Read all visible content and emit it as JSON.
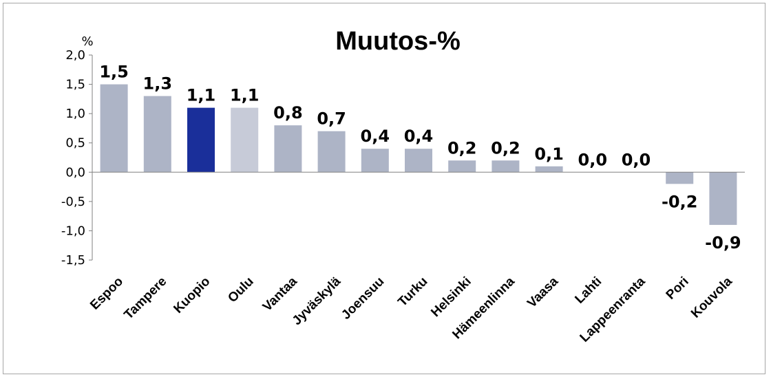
{
  "chart_data": {
    "type": "bar",
    "title": "Muutos-%",
    "ylabel": "%",
    "xlabel": "",
    "ylim": [
      -1.5,
      2.0
    ],
    "yticks": [
      2.0,
      1.5,
      1.0,
      0.5,
      0.0,
      -0.5,
      -1.0,
      -1.5
    ],
    "ytick_labels": [
      "2,0",
      "1,5",
      "1,0",
      "0,5",
      "0,0",
      "-0,5",
      "-1,0",
      "-1,5"
    ],
    "categories": [
      "Espoo",
      "Tampere",
      "Kuopio",
      "Oulu",
      "Vantaa",
      "Jyväskylä",
      "Joensuu",
      "Turku",
      "Helsinki",
      "Hämeenlinna",
      "Vaasa",
      "Lahti",
      "Lappeenranta",
      "Pori",
      "Kouvola"
    ],
    "values": [
      1.5,
      1.3,
      1.1,
      1.1,
      0.8,
      0.7,
      0.4,
      0.4,
      0.2,
      0.2,
      0.1,
      0.0,
      0.0,
      -0.2,
      -0.9
    ],
    "data_labels": [
      "1,5",
      "1,3",
      "1,1",
      "1,1",
      "0,8",
      "0,7",
      "0,4",
      "0,4",
      "0,2",
      "0,2",
      "0,1",
      "0,0",
      "0,0",
      "-0,2",
      "-0,9"
    ],
    "bar_colors": [
      "#adb4c6",
      "#adb4c6",
      "#1a2f9a",
      "#c7cbd8",
      "#adb4c6",
      "#adb4c6",
      "#adb4c6",
      "#adb4c6",
      "#adb4c6",
      "#adb4c6",
      "#adb4c6",
      "#adb4c6",
      "#adb4c6",
      "#adb4c6",
      "#adb4c6"
    ],
    "grid": false,
    "legend": "none"
  }
}
